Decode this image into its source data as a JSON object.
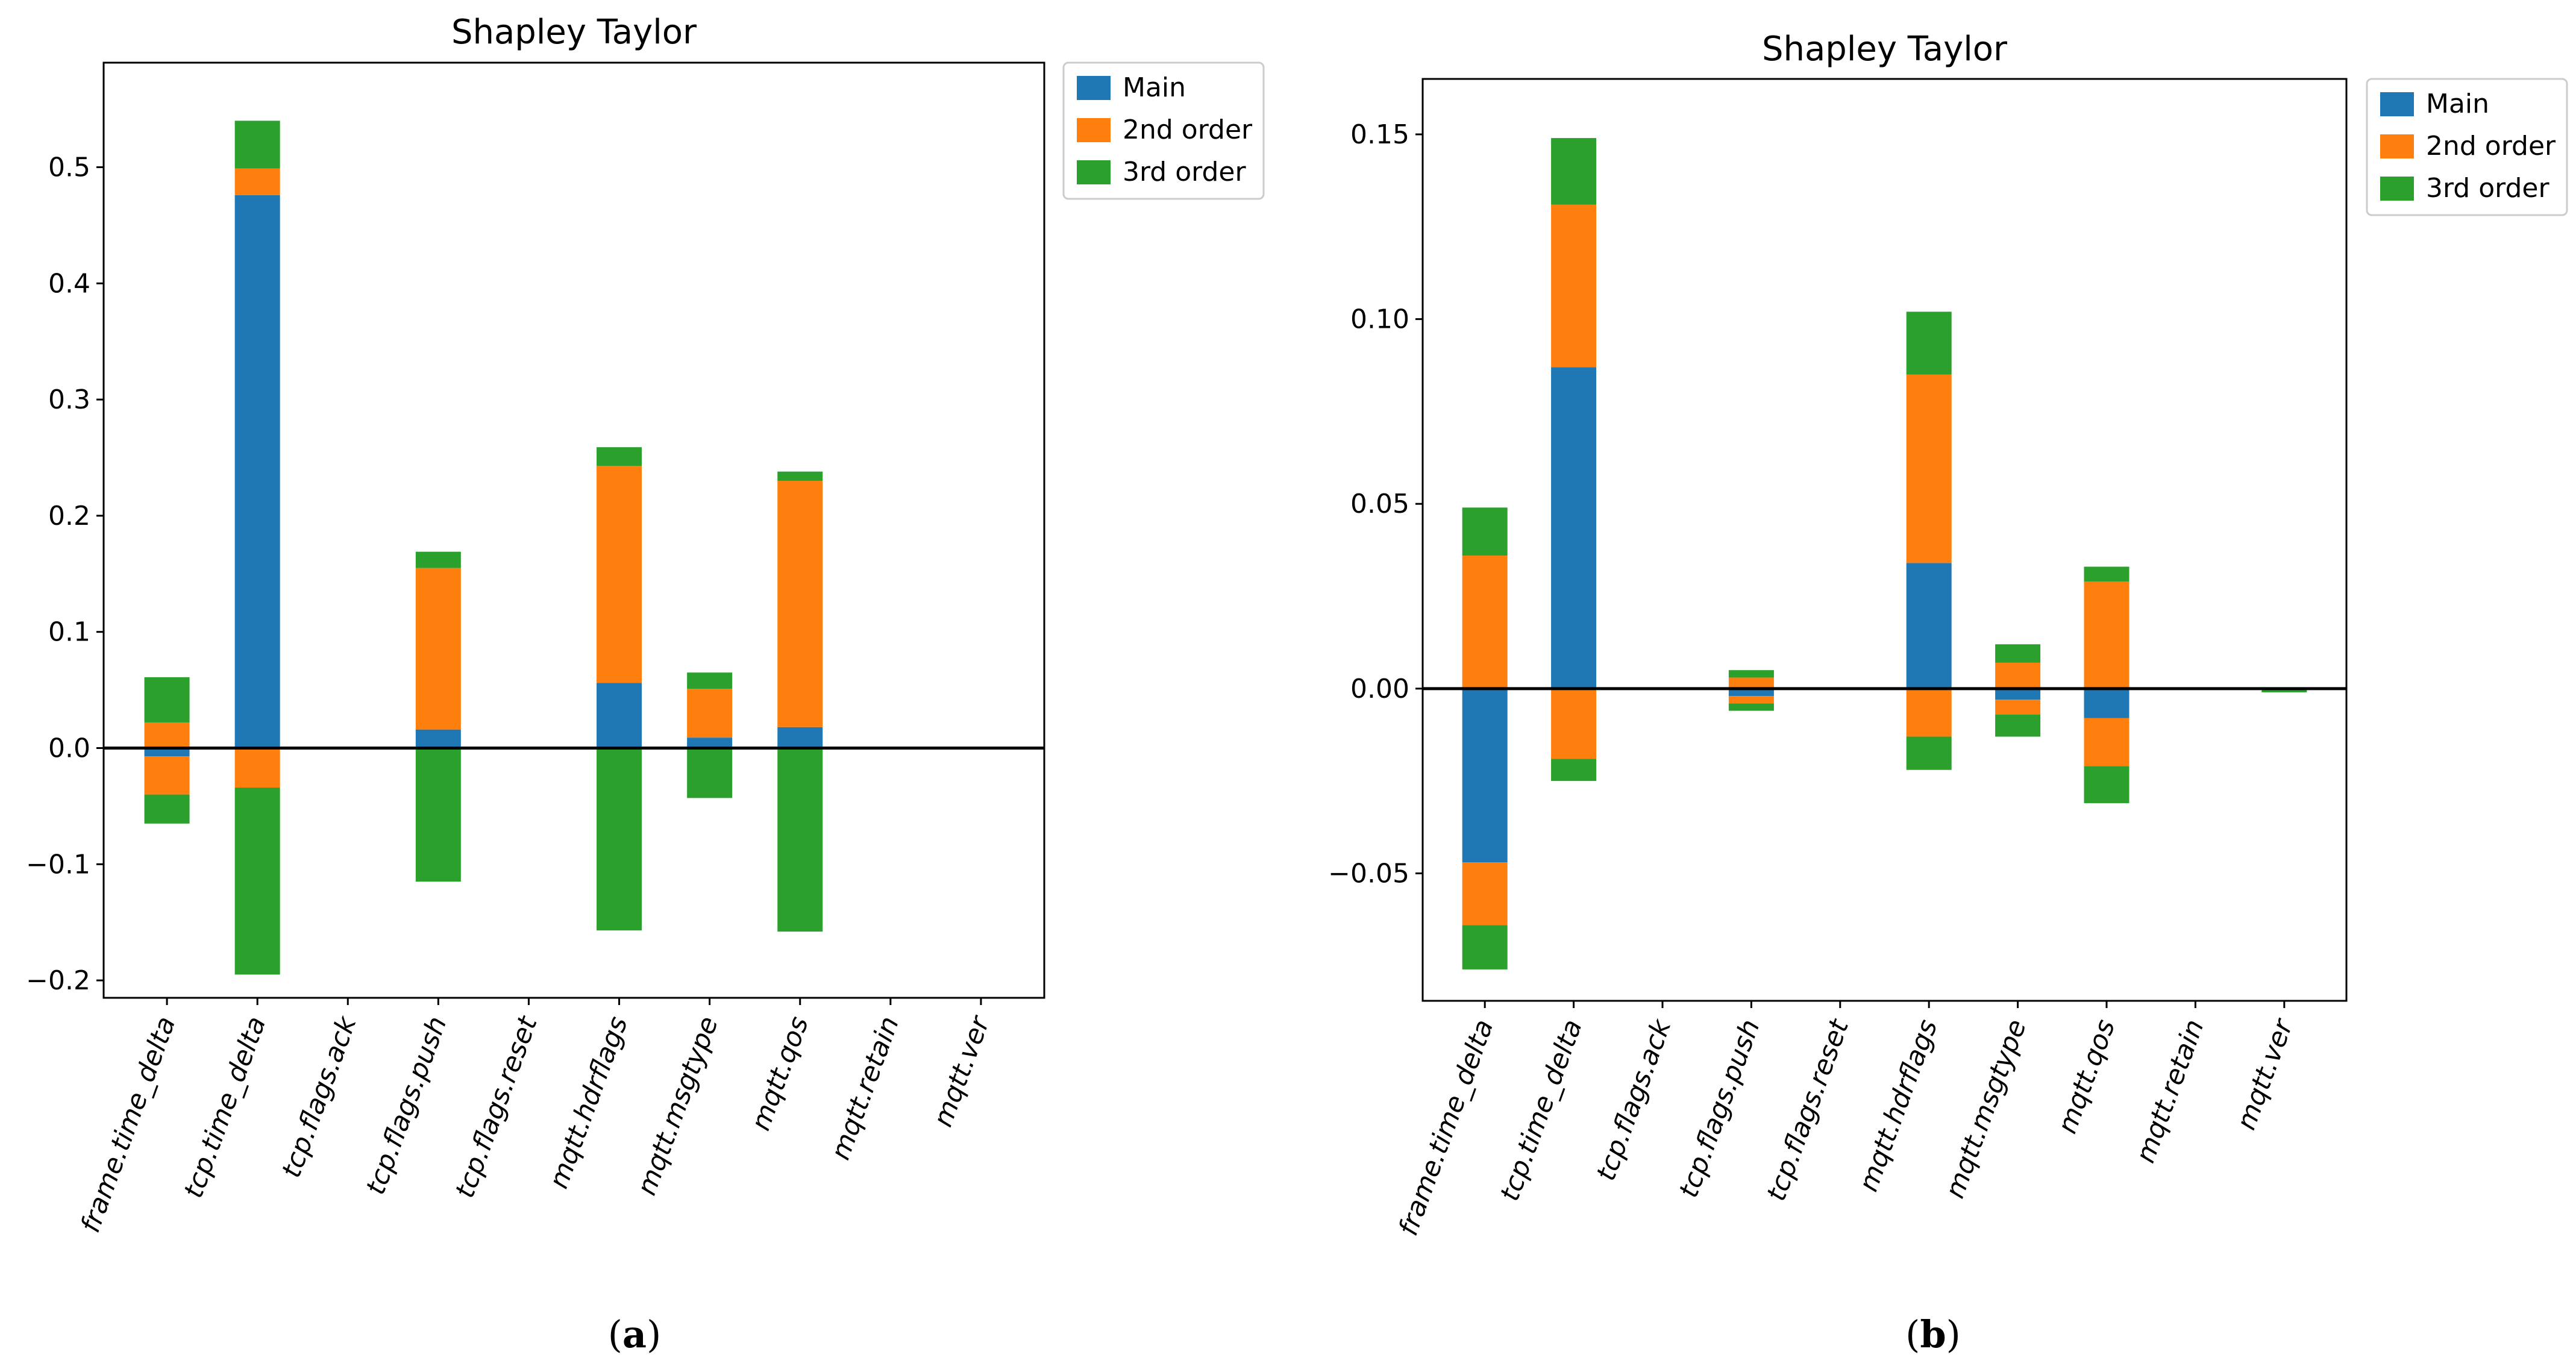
{
  "colors": {
    "main": "#1f77b4",
    "second_order": "#ff7f0e",
    "third_order": "#2ca02c",
    "baseline": "#000000"
  },
  "chart_data": [
    {
      "type": "bar",
      "stacked": true,
      "title": "Shapley Taylor",
      "caption": "(a)",
      "caption_letter": "a",
      "xlabel": "",
      "ylabel": "",
      "ylim": [
        -0.215,
        0.59
      ],
      "yticks": [
        -0.2,
        -0.1,
        0.0,
        0.1,
        0.2,
        0.3,
        0.4,
        0.5
      ],
      "ytick_labels": [
        "−0.2",
        "−0.1",
        "0.0",
        "0.1",
        "0.2",
        "0.3",
        "0.4",
        "0.5"
      ],
      "legend_position": "outside upper right",
      "grid": false,
      "baseline": 0,
      "categories": [
        "frame.time_delta",
        "tcp.time_delta",
        "tcp.flags.ack",
        "tcp.flags.push",
        "tcp.flags.reset",
        "mqtt.hdrflags",
        "mqtt.msgtype",
        "mqtt.qos",
        "mqtt.retain",
        "mqtt.ver"
      ],
      "series": [
        {
          "name": "Main",
          "values": [
            -0.007,
            0.476,
            0,
            0.016,
            0,
            0.056,
            0.009,
            0.018,
            0,
            0
          ]
        },
        {
          "name": "2nd order",
          "pos": [
            0.022,
            0.023,
            0,
            0.139,
            0,
            0.187,
            0.042,
            0.212,
            0,
            0
          ],
          "neg": [
            -0.033,
            -0.034,
            0,
            0,
            0,
            0,
            0,
            0,
            0,
            0
          ]
        },
        {
          "name": "3rd order",
          "pos": [
            0.039,
            0.041,
            0,
            0.014,
            0,
            0.016,
            0.014,
            0.008,
            0,
            0
          ],
          "neg": [
            -0.025,
            -0.161,
            0,
            -0.115,
            0,
            -0.157,
            -0.043,
            -0.158,
            0,
            0
          ]
        }
      ]
    },
    {
      "type": "bar",
      "stacked": true,
      "title": "Shapley Taylor",
      "caption": "(b)",
      "caption_letter": "b",
      "xlabel": "",
      "ylabel": "",
      "ylim": [
        -0.0845,
        0.165
      ],
      "yticks": [
        -0.05,
        0.0,
        0.05,
        0.1,
        0.15
      ],
      "ytick_labels": [
        "−0.05",
        "0.00",
        "0.05",
        "0.10",
        "0.15"
      ],
      "legend_position": "outside upper right",
      "grid": false,
      "baseline": 0,
      "categories": [
        "frame.time_delta",
        "tcp.time_delta",
        "tcp.flags.ack",
        "tcp.flags.push",
        "tcp.flags.reset",
        "mqtt.hdrflags",
        "mqtt.msgtype",
        "mqtt.qos",
        "mqtt.retain",
        "mqtt.ver"
      ],
      "series": [
        {
          "name": "Main",
          "values": [
            -0.047,
            0.087,
            0,
            -0.002,
            0,
            0.034,
            -0.003,
            -0.008,
            0,
            0
          ]
        },
        {
          "name": "2nd order",
          "pos": [
            0.036,
            0.044,
            0,
            0.003,
            0,
            0.051,
            0.007,
            0.029,
            0,
            0
          ],
          "neg": [
            -0.017,
            -0.019,
            0,
            -0.002,
            0,
            -0.013,
            -0.004,
            -0.013,
            0,
            0
          ]
        },
        {
          "name": "3rd order",
          "pos": [
            0.013,
            0.018,
            0,
            0.002,
            0,
            0.017,
            0.005,
            0.004,
            0,
            0
          ],
          "neg": [
            -0.012,
            -0.006,
            0,
            -0.002,
            0,
            -0.009,
            -0.006,
            -0.01,
            0,
            -0.001
          ]
        }
      ]
    }
  ]
}
